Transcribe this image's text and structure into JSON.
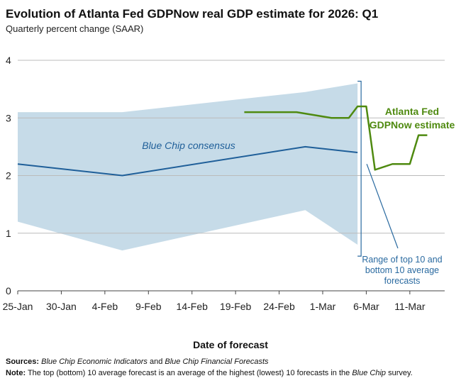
{
  "title": "Evolution of Atlanta Fed GDPNow real GDP estimate for 2026: Q1",
  "subtitle": "Quarterly percent change (SAAR)",
  "xlabel": "Date of forecast",
  "notes": {
    "sources_label": "Sources:",
    "sources_part1": "Blue Chip Economic Indicators",
    "sources_and": " and ",
    "sources_part2": "Blue Chip Financial Forecasts",
    "note_label": "Note:",
    "note_text1": " The top (bottom) 10 average forecast is an average of the highest (lowest) 10 forecasts in the ",
    "note_italic": "Blue Chip",
    "note_text2": " survey."
  },
  "colors": {
    "band": "#c6dbe8",
    "blue_chip": "#1f5f99",
    "gdpnow": "#4f8a10",
    "grid": "#bbbbbb",
    "annotation": "#2a6aa0"
  },
  "chart_data": {
    "type": "line",
    "x_axis": {
      "type": "date",
      "min": "2026-01-25",
      "max": "2026-03-15",
      "ticks": [
        "2026-01-25",
        "2026-01-30",
        "2026-02-04",
        "2026-02-09",
        "2026-02-14",
        "2026-02-19",
        "2026-02-24",
        "2026-03-01",
        "2026-03-06",
        "2026-03-11"
      ],
      "tick_labels": [
        "25-Jan",
        "30-Jan",
        "4-Feb",
        "9-Feb",
        "14-Feb",
        "19-Feb",
        "24-Feb",
        "1-Mar",
        "6-Mar",
        "11-Mar"
      ]
    },
    "y_axis": {
      "min": 0,
      "max": 4,
      "ticks": [
        0,
        1,
        2,
        3,
        4
      ],
      "tick_labels": [
        "0",
        "1",
        "2",
        "3",
        "4"
      ]
    },
    "grid": "horizontal",
    "band": {
      "name": "Range of top 10 and bottom 10 average forecasts",
      "x": [
        "2026-01-25",
        "2026-02-06",
        "2026-02-27",
        "2026-03-05"
      ],
      "upper": [
        3.1,
        3.1,
        3.45,
        3.6
      ],
      "lower": [
        1.2,
        0.7,
        1.4,
        0.8
      ]
    },
    "series": [
      {
        "name": "Blue Chip consensus",
        "x": [
          "2026-01-25",
          "2026-02-06",
          "2026-02-27",
          "2026-03-05"
        ],
        "y": [
          2.2,
          2.0,
          2.5,
          2.4
        ]
      },
      {
        "name": "Atlanta Fed GDPNow estimate",
        "x": [
          "2026-02-20",
          "2026-02-26",
          "2026-03-02",
          "2026-03-03",
          "2026-03-04",
          "2026-03-05",
          "2026-03-06",
          "2026-03-07",
          "2026-03-08",
          "2026-03-09",
          "2026-03-10",
          "2026-03-11",
          "2026-03-12",
          "2026-03-13"
        ],
        "y": [
          3.1,
          3.1,
          3.0,
          3.0,
          3.0,
          3.2,
          3.2,
          2.1,
          2.15,
          2.2,
          2.2,
          2.2,
          2.7,
          2.7
        ]
      }
    ],
    "annotations": [
      {
        "id": "blue_chip",
        "lines": [
          "Blue Chip consensus"
        ]
      },
      {
        "id": "gdpnow",
        "lines": [
          "Atlanta Fed",
          "GDPNow estimate"
        ]
      },
      {
        "id": "range",
        "lines": [
          "Range of top 10 and",
          "bottom 10 average",
          "forecasts"
        ]
      }
    ]
  }
}
